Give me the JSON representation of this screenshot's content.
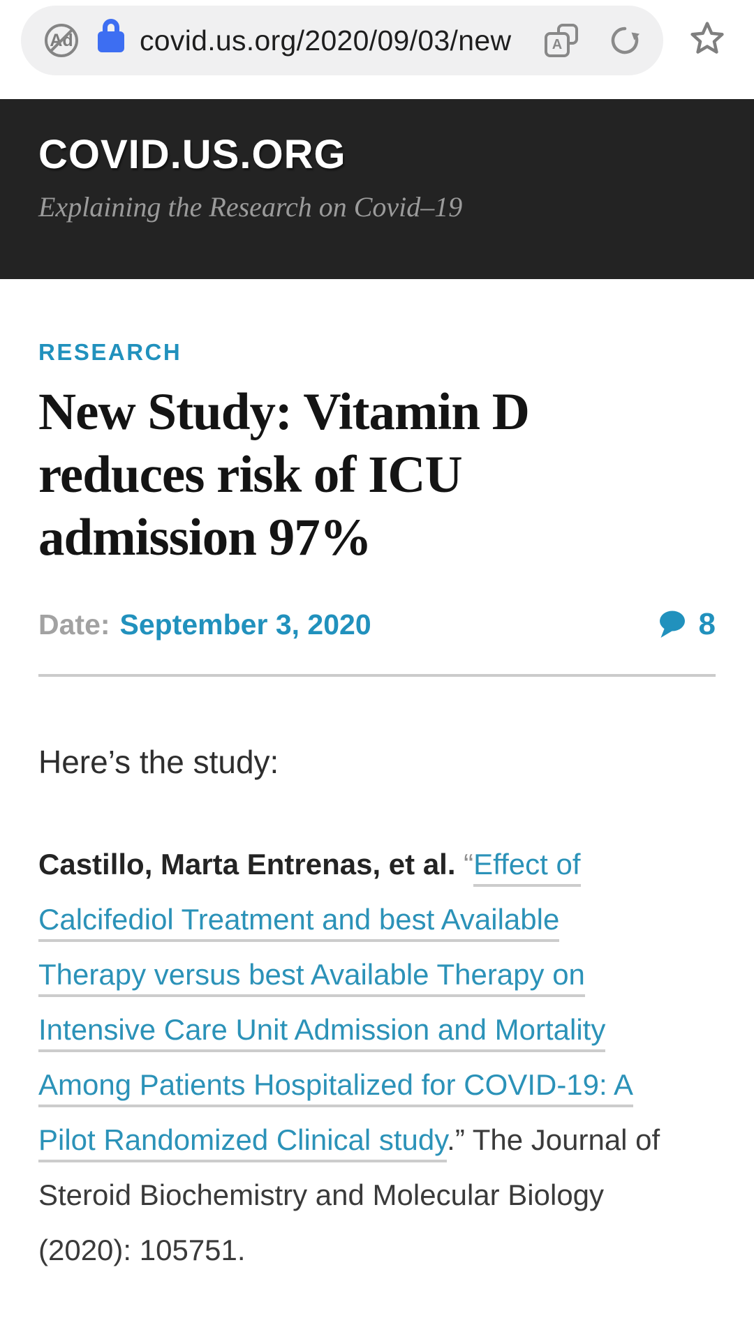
{
  "browser": {
    "url": "covid.us.org/2020/09/03/new",
    "adblock_badge_text": "Ad",
    "reader_letter": "A"
  },
  "site_header": {
    "title": "COVID.US.ORG",
    "tagline": "Explaining the Research on Covid–19"
  },
  "article": {
    "category": "RESEARCH",
    "title_lines": [
      "New Study: Vitamin D",
      "reduces risk of ICU",
      "admission 97%"
    ],
    "date_label": "Date:",
    "date_value": "September 3, 2020",
    "comments_count": "8",
    "intro": "Here’s the study:",
    "citation_segments": [
      {
        "text": "Castillo, Marta Entrenas, et al.",
        "style": "bold"
      },
      {
        "text": " “",
        "style": "quote"
      },
      {
        "text": "Effect of",
        "style": "link",
        "break_after": true
      },
      {
        "text": "Calcifediol Treatment and best Available",
        "style": "link",
        "break_after": true
      },
      {
        "text": "Therapy versus best Available Therapy on",
        "style": "link",
        "break_after": true
      },
      {
        "text": "Intensive Care Unit Admission and Mortality",
        "style": "link",
        "break_after": true
      },
      {
        "text": "Among Patients Hospitalized for COVID-19: A",
        "style": "link",
        "break_after": true
      },
      {
        "text": "Pilot Randomized Clinical study",
        "style": "link"
      },
      {
        "text": ".” The Journal of",
        "style": "plain",
        "break_after": true
      },
      {
        "text": "Steroid Biochemistry and Molecular Biology",
        "style": "plain",
        "break_after": true
      },
      {
        "text": "(2020): 105751.",
        "style": "plain"
      }
    ]
  },
  "colors": {
    "accent": "#2191bd",
    "link": "#2b92b8",
    "lock_blue": "#3d6ef2",
    "header_bg": "#232323",
    "urlbar_bg": "#f0f0f1",
    "icon_gray": "#8a8a8a"
  }
}
